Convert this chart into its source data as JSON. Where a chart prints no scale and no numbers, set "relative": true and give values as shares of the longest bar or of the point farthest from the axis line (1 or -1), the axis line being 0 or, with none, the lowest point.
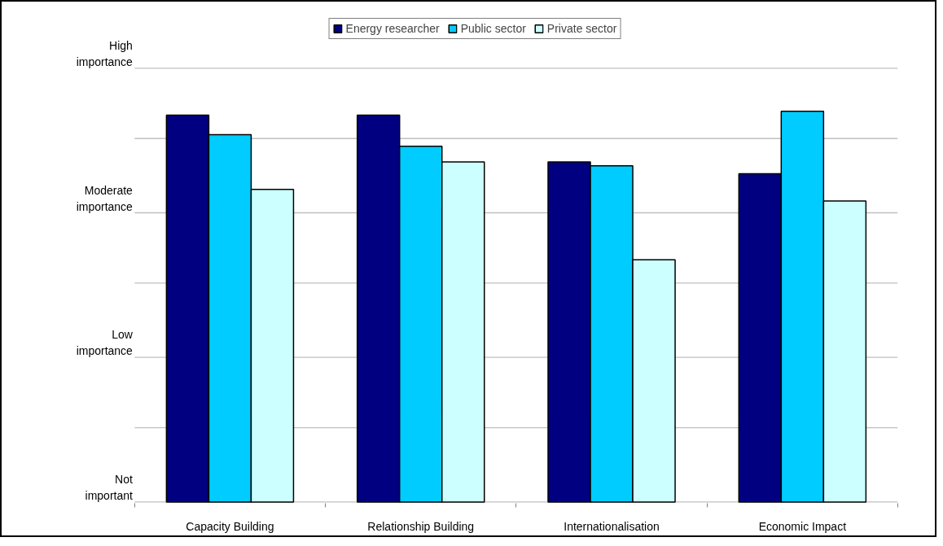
{
  "chart_data": {
    "type": "bar",
    "relative": true,
    "categories": [
      "Capacity Building",
      "Relationship Building",
      "Internationalisation",
      "Economic Impact"
    ],
    "series": [
      {
        "name": "Energy researcher",
        "color": "#000080",
        "values": [
          0.99,
          0.99,
          0.87,
          0.84
        ]
      },
      {
        "name": "Public sector",
        "color": "#00ccff",
        "values": [
          0.94,
          0.91,
          0.86,
          1
        ]
      },
      {
        "name": "Private sector",
        "color": "#ccffff",
        "values": [
          0.8,
          0.87,
          0.62,
          0.77
        ]
      }
    ],
    "ref_lines": [
      {
        "axis": "y",
        "value": 0,
        "label": "Not important"
      },
      {
        "axis": "y",
        "value": 0.19
      },
      {
        "axis": "y",
        "value": 0.37,
        "label": "Low importance"
      },
      {
        "axis": "y",
        "value": 0.56
      },
      {
        "axis": "y",
        "value": 0.74,
        "label": "Moderate importance"
      },
      {
        "axis": "y",
        "value": 0.93
      },
      {
        "axis": "y",
        "value": 1.11,
        "label": "High importance"
      }
    ],
    "legend": "top"
  }
}
